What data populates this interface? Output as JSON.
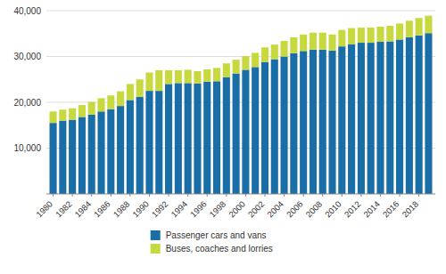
{
  "chart_data": {
    "type": "bar",
    "stacked": true,
    "grid": true,
    "legend": "bottom",
    "x": [
      1980,
      1981,
      1982,
      1983,
      1984,
      1985,
      1986,
      1987,
      1988,
      1989,
      1990,
      1991,
      1992,
      1993,
      1994,
      1995,
      1996,
      1997,
      1998,
      1999,
      2000,
      2001,
      2002,
      2003,
      2004,
      2005,
      2006,
      2007,
      2008,
      2009,
      2010,
      2011,
      2012,
      2013,
      2014,
      2015,
      2016,
      2017,
      2018,
      2019
    ],
    "series": [
      {
        "name": "Passenger cars and vans",
        "color": "#1a6ea8",
        "values": [
          15500,
          16000,
          16200,
          16800,
          17300,
          18000,
          18500,
          19200,
          20500,
          21200,
          22500,
          22500,
          24000,
          24200,
          24200,
          24100,
          24500,
          24600,
          25500,
          26300,
          27100,
          27700,
          28800,
          29400,
          30000,
          30700,
          31200,
          31500,
          31500,
          31300,
          32200,
          32700,
          33000,
          33000,
          33200,
          33300,
          33700,
          34200,
          34600,
          35100
        ]
      },
      {
        "name": "Buses, coaches and lorries",
        "color": "#c8d940",
        "values": [
          2500,
          2400,
          2500,
          2600,
          2800,
          2900,
          3000,
          3200,
          3500,
          3800,
          4000,
          4500,
          3000,
          2800,
          2900,
          2700,
          2700,
          2900,
          3000,
          3000,
          3000,
          3100,
          3200,
          3200,
          3400,
          3500,
          3600,
          3700,
          3700,
          3500,
          3600,
          3500,
          3300,
          3300,
          3300,
          3400,
          3500,
          3600,
          3800,
          3800
        ]
      }
    ],
    "xlim": [
      1979.3,
      2019.7
    ],
    "xticks": [
      1980,
      1982,
      1984,
      1986,
      1988,
      1990,
      1992,
      1994,
      1996,
      1998,
      2000,
      2002,
      2004,
      2006,
      2008,
      2010,
      2012,
      2014,
      2016,
      2018
    ],
    "ylim": [
      0,
      40000
    ],
    "yticks": [
      {
        "value": 10000,
        "label": "10,000"
      },
      {
        "value": 20000,
        "label": "20,000"
      },
      {
        "value": 30000,
        "label": "30,000"
      },
      {
        "value": 40000,
        "label": "40,000"
      }
    ]
  }
}
